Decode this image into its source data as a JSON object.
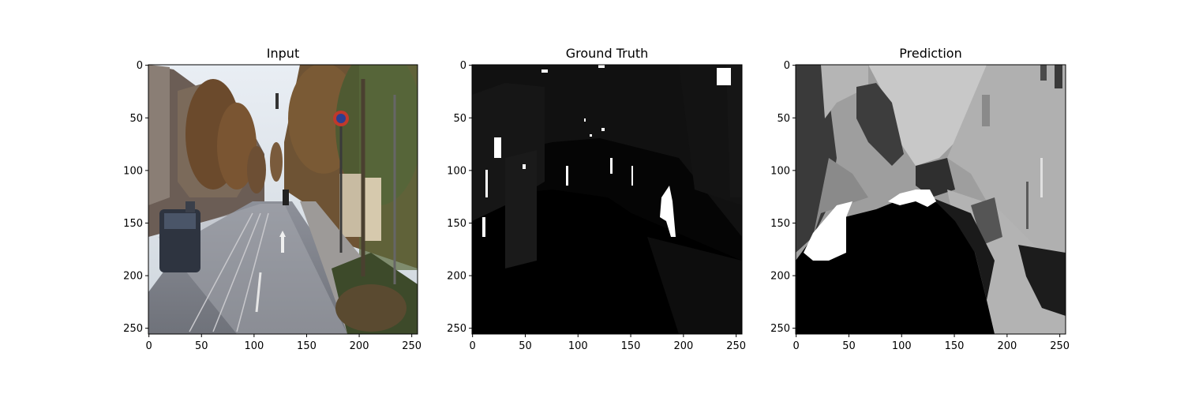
{
  "figure": {
    "panels": [
      {
        "title": "Input",
        "image": "street-scene-photo",
        "xticks": [
          "0",
          "50",
          "100",
          "150",
          "200",
          "250"
        ],
        "yticks": [
          "0",
          "50",
          "100",
          "150",
          "200",
          "250"
        ]
      },
      {
        "title": "Ground Truth",
        "image": "depth-ground-truth-map",
        "xticks": [
          "0",
          "50",
          "100",
          "150",
          "200",
          "250"
        ],
        "yticks": [
          "0",
          "50",
          "100",
          "150",
          "200",
          "250"
        ]
      },
      {
        "title": "Prediction",
        "image": "segmentation-prediction-map",
        "xticks": [
          "0",
          "50",
          "100",
          "150",
          "200",
          "250"
        ],
        "yticks": [
          "0",
          "50",
          "100",
          "150",
          "200",
          "250"
        ]
      }
    ],
    "axis_range": [
      0,
      256
    ]
  }
}
